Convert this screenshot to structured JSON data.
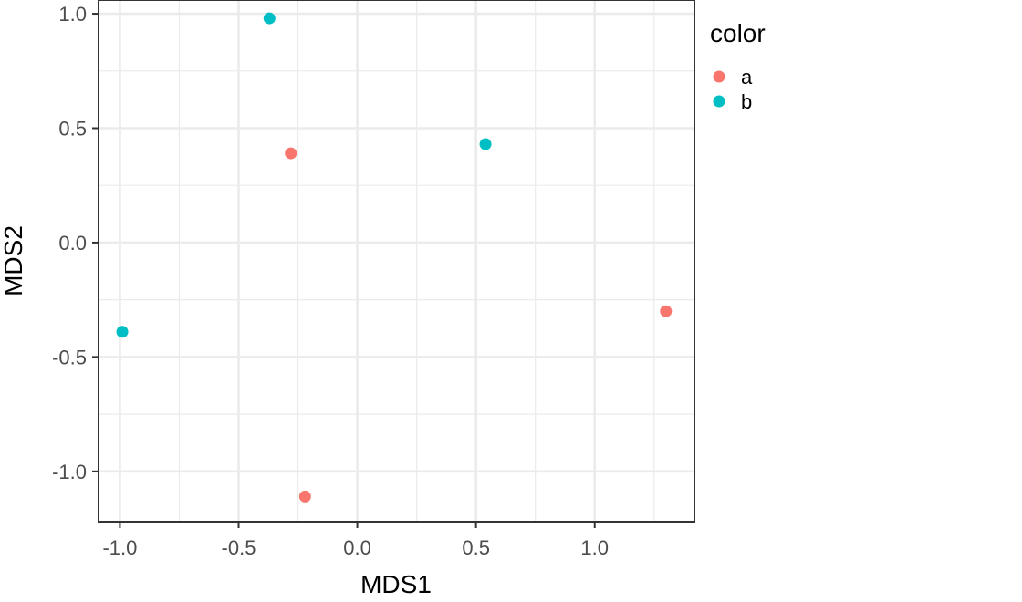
{
  "chart_data": {
    "type": "scatter",
    "title": "",
    "xlabel": "MDS1",
    "ylabel": "MDS2",
    "xlim": [
      -1.09,
      1.42
    ],
    "ylim": [
      -1.22,
      1.06
    ],
    "x_ticks": [
      -1.0,
      -0.5,
      0.0,
      0.5,
      1.0
    ],
    "y_ticks": [
      -1.0,
      -0.5,
      0.0,
      0.5,
      1.0
    ],
    "x_tick_labels": [
      "-1.0",
      "-0.5",
      "0.0",
      "0.5",
      "1.0"
    ],
    "y_tick_labels": [
      "-1.0",
      "-0.5",
      "0.0",
      "0.5",
      "1.0"
    ],
    "grid": true,
    "legend": {
      "title": "color",
      "placement": "right"
    },
    "series": [
      {
        "name": "a",
        "color": "#F8766D",
        "points": [
          {
            "x": -0.28,
            "y": 0.39
          },
          {
            "x": 1.3,
            "y": -0.3
          },
          {
            "x": -0.22,
            "y": -1.11
          }
        ]
      },
      {
        "name": "b",
        "color": "#00BFC4",
        "points": [
          {
            "x": -0.37,
            "y": 0.98
          },
          {
            "x": 0.54,
            "y": 0.43
          },
          {
            "x": -0.99,
            "y": -0.39
          }
        ]
      }
    ]
  }
}
